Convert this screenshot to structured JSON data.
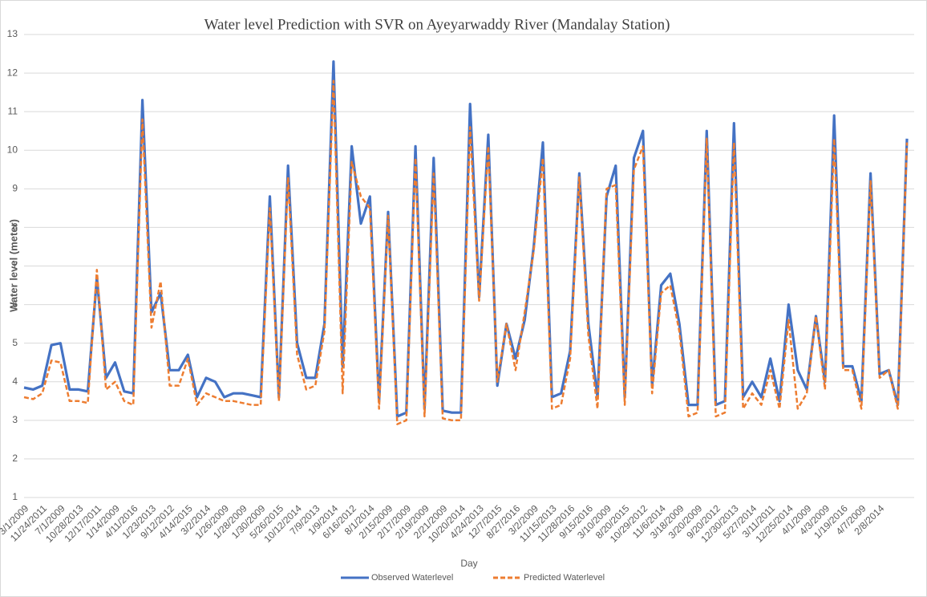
{
  "chart_data": {
    "type": "line",
    "title": "Water level Prediction with SVR on Ayeyarwaddy River (Mandalay Station)",
    "x_label": "Day",
    "y_label": "Water level (meter)",
    "categories": [
      "3/1/2009",
      null,
      "11/24/2011",
      null,
      "7/1/2009",
      null,
      "10/28/2013",
      null,
      "12/17/2011",
      null,
      "1/14/2009",
      null,
      "4/11/2016",
      null,
      "1/23/2013",
      null,
      "9/12/2012",
      null,
      "4/14/2015",
      null,
      "3/2/2014",
      null,
      "1/26/2009",
      null,
      "1/28/2009",
      null,
      "1/30/2009",
      null,
      "5/26/2015",
      null,
      "10/12/2014",
      null,
      "7/9/2013",
      null,
      "1/9/2014",
      null,
      "6/16/2012",
      null,
      "8/1/2014",
      null,
      "2/15/2009",
      null,
      "2/17/2009",
      null,
      "2/19/2009",
      null,
      "2/21/2009",
      null,
      "10/20/2014",
      null,
      "4/24/2013",
      null,
      "12/7/2015",
      null,
      "8/27/2016",
      null,
      "3/2/2009",
      null,
      "11/15/2013",
      null,
      "11/28/2016",
      null,
      "9/15/2016",
      null,
      "3/10/2009",
      null,
      "8/20/2015",
      null,
      "10/29/2012",
      null,
      "11/6/2014",
      null,
      "3/18/2009",
      null,
      "3/20/2009",
      null,
      "9/20/2012",
      null,
      "12/30/2013",
      null,
      "5/27/2014",
      null,
      "3/11/2011",
      null,
      "12/25/2014",
      null,
      "4/1/2009",
      null,
      "4/3/2009",
      null,
      "1/19/2016",
      null,
      "4/7/2009",
      null,
      "2/8/2014",
      null,
      null,
      null
    ],
    "series": [
      {
        "name": "Observed Waterlevel",
        "color": "#4472c4",
        "dashed": false,
        "values": [
          3.85,
          3.8,
          3.9,
          4.95,
          5.0,
          3.8,
          3.8,
          3.75,
          6.7,
          4.1,
          4.5,
          3.75,
          3.7,
          11.3,
          5.8,
          6.3,
          4.3,
          4.3,
          4.7,
          3.6,
          4.1,
          4.0,
          3.6,
          3.7,
          3.7,
          3.65,
          3.6,
          8.8,
          3.6,
          9.6,
          5.0,
          4.1,
          4.1,
          5.5,
          12.3,
          4.4,
          10.1,
          8.1,
          8.8,
          3.5,
          8.4,
          3.1,
          3.2,
          10.1,
          3.3,
          9.8,
          3.25,
          3.2,
          3.2,
          11.2,
          6.2,
          10.4,
          3.9,
          5.5,
          4.6,
          5.6,
          7.5,
          10.2,
          3.6,
          3.7,
          4.8,
          9.4,
          5.5,
          3.6,
          8.8,
          9.6,
          3.6,
          9.8,
          10.5,
          3.9,
          6.5,
          6.8,
          5.5,
          3.4,
          3.4,
          10.5,
          3.4,
          3.5,
          10.7,
          3.6,
          4.0,
          3.6,
          4.6,
          3.5,
          6.0,
          4.3,
          3.8,
          5.7,
          4.0,
          10.9,
          4.4,
          4.4,
          3.5,
          9.4,
          4.2,
          4.3,
          3.4,
          10.3
        ]
      },
      {
        "name": "Predicted Waterlevel",
        "color": "#ed7d31",
        "dashed": true,
        "values": [
          3.6,
          3.55,
          3.7,
          4.55,
          4.5,
          3.5,
          3.5,
          3.45,
          6.9,
          3.8,
          4.0,
          3.5,
          3.4,
          10.8,
          5.4,
          6.6,
          3.9,
          3.9,
          4.6,
          3.4,
          3.7,
          3.6,
          3.5,
          3.5,
          3.45,
          3.4,
          3.4,
          8.5,
          3.5,
          9.3,
          4.7,
          3.8,
          3.9,
          5.3,
          11.8,
          3.7,
          9.7,
          8.8,
          8.5,
          3.3,
          8.3,
          2.9,
          3.0,
          9.8,
          3.1,
          9.4,
          3.05,
          3.0,
          3.0,
          10.6,
          6.1,
          10.1,
          4.0,
          5.5,
          4.3,
          5.8,
          7.4,
          9.8,
          3.3,
          3.4,
          4.6,
          9.3,
          5.2,
          3.3,
          9.0,
          9.1,
          3.4,
          9.5,
          10.1,
          3.7,
          6.3,
          6.5,
          5.3,
          3.1,
          3.2,
          10.3,
          3.1,
          3.2,
          10.2,
          3.3,
          3.7,
          3.4,
          4.3,
          3.3,
          5.6,
          3.3,
          3.7,
          5.7,
          3.8,
          10.3,
          4.3,
          4.3,
          3.3,
          9.2,
          4.1,
          4.3,
          3.3,
          10.2
        ]
      }
    ],
    "ylim": [
      1,
      13
    ],
    "yticks": [
      1,
      2,
      3,
      4,
      5,
      6,
      7,
      8,
      9,
      10,
      11,
      12,
      13
    ],
    "grid": true,
    "legend": "bottom"
  }
}
